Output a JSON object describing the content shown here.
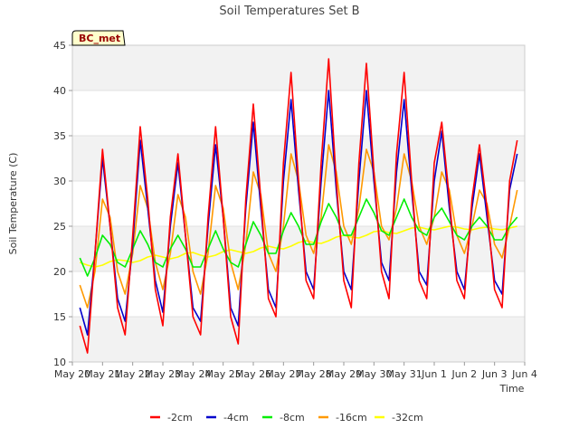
{
  "chart_data": {
    "type": "line",
    "title": "Soil Temperatures Set B",
    "xlabel": "Time",
    "ylabel": "Soil Temperature (C)",
    "ylim": [
      10,
      45
    ],
    "yticks": [
      10,
      15,
      20,
      25,
      30,
      35,
      40,
      45
    ],
    "xlim": [
      0,
      15
    ],
    "xticks": [
      0,
      1,
      2,
      3,
      4,
      5,
      6,
      7,
      8,
      9,
      10,
      11,
      12,
      13,
      14,
      15
    ],
    "xtick_labels": [
      "May 20",
      "May 21",
      "May 22",
      "May 23",
      "May 24",
      "May 25",
      "May 26",
      "May 27",
      "May 28",
      "May 29",
      "May 30",
      "May 31",
      "Jun 1",
      "Jun 2",
      "Jun 3",
      "Jun 4"
    ],
    "x_unit": "days since May 20",
    "grid": "horizontal bands",
    "legend_position": "bottom",
    "annotation": "BC_met",
    "series": [
      {
        "name": "-2cm",
        "color": "#ff0000",
        "x": [
          0.25,
          0.5,
          0.75,
          1.0,
          1.25,
          1.5,
          1.75,
          2.0,
          2.25,
          2.5,
          2.75,
          3.0,
          3.25,
          3.5,
          3.75,
          4.0,
          4.25,
          4.5,
          4.75,
          5.0,
          5.25,
          5.5,
          5.75,
          6.0,
          6.25,
          6.5,
          6.75,
          7.0,
          7.25,
          7.5,
          7.75,
          8.0,
          8.25,
          8.5,
          8.75,
          9.0,
          9.25,
          9.5,
          9.75,
          10.0,
          10.25,
          10.5,
          10.75,
          11.0,
          11.25,
          11.5,
          11.75,
          12.0,
          12.25,
          12.5,
          12.75,
          13.0,
          13.25,
          13.5,
          13.75,
          14.0,
          14.25,
          14.5,
          14.75
        ],
        "y": [
          14,
          11,
          22,
          33.5,
          25,
          16,
          13,
          24,
          36,
          28,
          18,
          14,
          26,
          33,
          24,
          15,
          13,
          26,
          36,
          26,
          15,
          12,
          28,
          38.5,
          28,
          17,
          15,
          32,
          42,
          30,
          19,
          17,
          32,
          43.5,
          30,
          19,
          16,
          32,
          43,
          31,
          20,
          17,
          33,
          42,
          30,
          19,
          17,
          32,
          36.5,
          28,
          19,
          17,
          28,
          34,
          27,
          18,
          16,
          30,
          34.5
        ]
      },
      {
        "name": "-4cm",
        "color": "#0000cc",
        "x": [
          0.25,
          0.5,
          0.75,
          1.0,
          1.25,
          1.5,
          1.75,
          2.0,
          2.25,
          2.5,
          2.75,
          3.0,
          3.25,
          3.5,
          3.75,
          4.0,
          4.25,
          4.5,
          4.75,
          5.0,
          5.25,
          5.5,
          5.75,
          6.0,
          6.25,
          6.5,
          6.75,
          7.0,
          7.25,
          7.5,
          7.75,
          8.0,
          8.25,
          8.5,
          8.75,
          9.0,
          9.25,
          9.5,
          9.75,
          10.0,
          10.25,
          10.5,
          10.75,
          11.0,
          11.25,
          11.5,
          11.75,
          12.0,
          12.25,
          12.5,
          12.75,
          13.0,
          13.25,
          13.5,
          13.75,
          14.0,
          14.25,
          14.5,
          14.75
        ],
        "y": [
          16,
          13,
          22,
          32.5,
          25,
          17,
          14.5,
          23,
          34.5,
          27,
          19,
          15.5,
          25,
          32,
          24,
          16,
          14.5,
          25,
          34,
          26,
          16,
          14,
          27,
          36.5,
          27,
          18,
          16,
          30,
          39,
          29,
          20,
          18,
          30,
          40,
          29,
          20,
          18,
          30,
          40,
          30,
          21,
          19,
          31,
          39,
          29,
          20,
          18.5,
          30,
          35.5,
          27,
          20,
          18,
          27,
          33,
          26,
          19,
          17.5,
          29,
          33
        ]
      },
      {
        "name": "-8cm",
        "color": "#00ee00",
        "x": [
          0.25,
          0.5,
          0.75,
          1.0,
          1.25,
          1.5,
          1.75,
          2.0,
          2.25,
          2.5,
          2.75,
          3.0,
          3.25,
          3.5,
          3.75,
          4.0,
          4.25,
          4.5,
          4.75,
          5.0,
          5.25,
          5.5,
          5.75,
          6.0,
          6.25,
          6.5,
          6.75,
          7.0,
          7.25,
          7.5,
          7.75,
          8.0,
          8.25,
          8.5,
          8.75,
          9.0,
          9.25,
          9.5,
          9.75,
          10.0,
          10.25,
          10.5,
          10.75,
          11.0,
          11.25,
          11.5,
          11.75,
          12.0,
          12.25,
          12.5,
          12.75,
          13.0,
          13.25,
          13.5,
          13.75,
          14.0,
          14.25,
          14.5,
          14.75
        ],
        "y": [
          21.5,
          19.5,
          21.5,
          24,
          23,
          21,
          20.5,
          22.5,
          24.5,
          23,
          21,
          20.5,
          22.5,
          24,
          22.5,
          20.5,
          20.5,
          22.5,
          24.5,
          22.5,
          21,
          20.5,
          23,
          25.5,
          24,
          22,
          22,
          24.5,
          26.5,
          25,
          23,
          23,
          25.5,
          27.5,
          26,
          24,
          24,
          26,
          28,
          26.5,
          24.5,
          24,
          26,
          28,
          26,
          24.5,
          24,
          26,
          27,
          25.5,
          24,
          23.5,
          25,
          26,
          25,
          23.5,
          23.5,
          25,
          26
        ]
      },
      {
        "name": "-16cm",
        "color": "#ff9900",
        "x": [
          0.25,
          0.5,
          0.75,
          1.0,
          1.25,
          1.5,
          1.75,
          2.0,
          2.25,
          2.5,
          2.75,
          3.0,
          3.25,
          3.5,
          3.75,
          4.0,
          4.25,
          4.5,
          4.75,
          5.0,
          5.25,
          5.5,
          5.75,
          6.0,
          6.25,
          6.5,
          6.75,
          7.0,
          7.25,
          7.5,
          7.75,
          8.0,
          8.25,
          8.5,
          8.75,
          9.0,
          9.25,
          9.5,
          9.75,
          10.0,
          10.25,
          10.5,
          10.75,
          11.0,
          11.25,
          11.5,
          11.75,
          12.0,
          12.25,
          12.5,
          12.75,
          13.0,
          13.25,
          13.5,
          13.75,
          14.0,
          14.25,
          14.5,
          14.75
        ],
        "y": [
          18.5,
          16,
          20,
          28,
          26,
          20,
          17.5,
          22,
          29.5,
          27,
          21,
          18,
          22,
          28.5,
          26,
          20,
          17.5,
          22,
          29.5,
          27,
          21,
          18,
          23,
          31,
          28.5,
          22,
          20,
          25,
          33,
          30,
          24,
          22,
          26,
          34,
          31,
          25,
          23,
          27,
          33.5,
          31,
          25,
          23.5,
          27,
          33,
          30,
          25,
          23,
          26,
          31,
          29,
          24,
          22,
          25,
          29,
          27.5,
          23,
          21.5,
          25,
          29
        ]
      },
      {
        "name": "-32cm",
        "color": "#ffff00",
        "x": [
          0.25,
          0.5,
          0.75,
          1.0,
          1.25,
          1.5,
          1.75,
          2.0,
          2.25,
          2.5,
          2.75,
          3.0,
          3.25,
          3.5,
          3.75,
          4.0,
          4.25,
          4.5,
          4.75,
          5.0,
          5.25,
          5.5,
          5.75,
          6.0,
          6.25,
          6.5,
          6.75,
          7.0,
          7.25,
          7.5,
          7.75,
          8.0,
          8.25,
          8.5,
          8.75,
          9.0,
          9.25,
          9.5,
          9.75,
          10.0,
          10.25,
          10.5,
          10.75,
          11.0,
          11.25,
          11.5,
          11.75,
          12.0,
          12.25,
          12.5,
          12.75,
          13.0,
          13.25,
          13.5,
          13.75,
          14.0,
          14.25,
          14.5,
          14.75
        ],
        "y": [
          21,
          20.7,
          20.5,
          20.7,
          21.1,
          21.3,
          21.2,
          21,
          21.2,
          21.6,
          21.8,
          21.6,
          21.4,
          21.6,
          22,
          22.1,
          21.8,
          21.6,
          21.8,
          22.2,
          22.4,
          22.2,
          22,
          22.2,
          22.6,
          22.8,
          22.6,
          22.5,
          22.8,
          23.2,
          23.4,
          23.2,
          23.1,
          23.4,
          23.8,
          24,
          23.8,
          23.7,
          24,
          24.4,
          24.5,
          24.3,
          24.2,
          24.5,
          24.8,
          24.9,
          24.7,
          24.6,
          24.8,
          25,
          24.9,
          24.7,
          24.6,
          24.8,
          24.9,
          24.7,
          24.6,
          24.8,
          25
        ]
      }
    ]
  }
}
